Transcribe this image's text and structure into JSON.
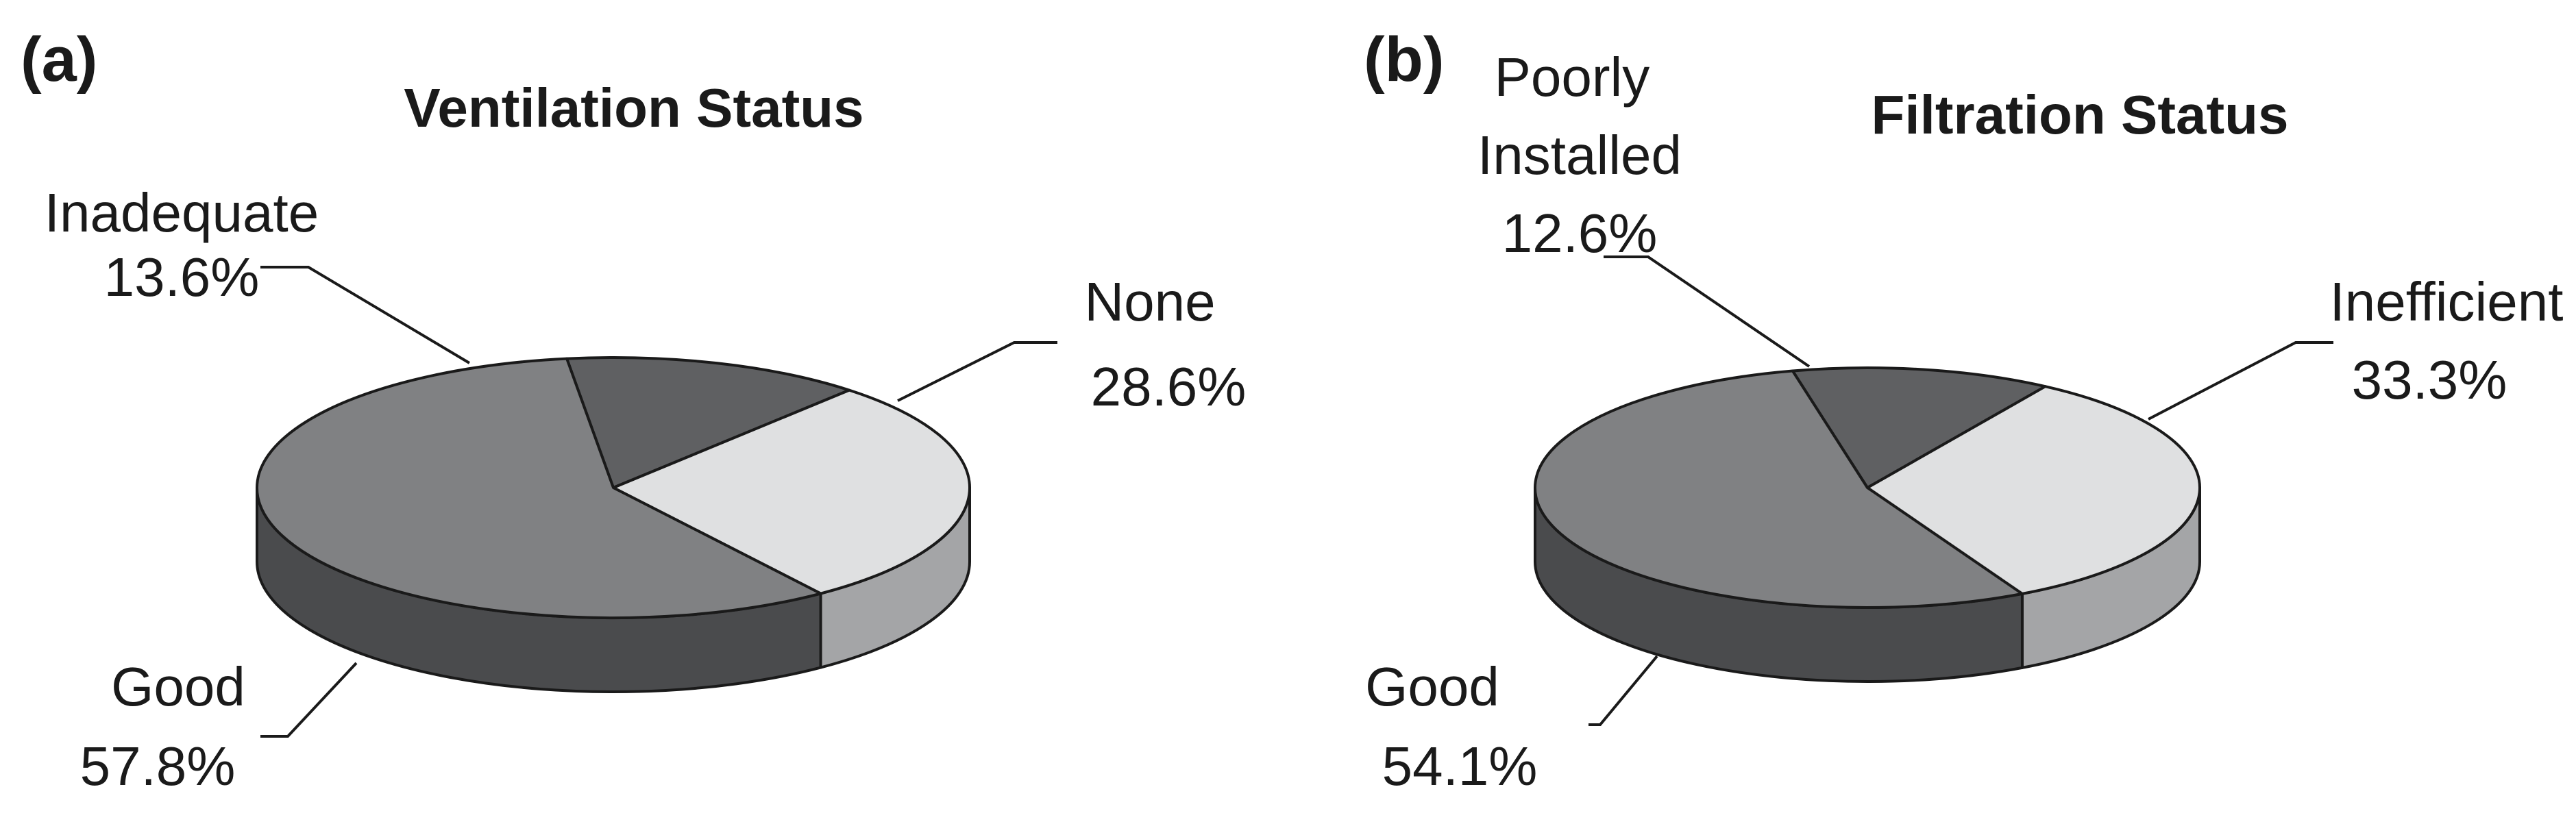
{
  "chart_data": [
    {
      "type": "pie",
      "panel_label": "(a)",
      "title": "Ventilation Status",
      "slices": [
        {
          "label": "Inadequate",
          "value": 13.6,
          "value_text": "13.6%",
          "color": "#5f6062",
          "side_color": "#444547"
        },
        {
          "label": "None",
          "value": 28.6,
          "value_text": "28.6%",
          "color": "#dfe0e1",
          "side_color": "#a4a5a7"
        },
        {
          "label": "Good",
          "value": 57.8,
          "value_text": "57.8%",
          "color": "#808183",
          "side_color": "#4a4b4d"
        }
      ]
    },
    {
      "type": "pie",
      "panel_label": "(b)",
      "title": "Filtration Status",
      "slices": [
        {
          "label": "Poorly\nInstalled",
          "value": 12.6,
          "value_text": "12.6%",
          "color": "#5f6062",
          "side_color": "#444547"
        },
        {
          "label": "Inefficient",
          "value": 33.3,
          "value_text": "33.3%",
          "color": "#dfe0e1",
          "side_color": "#a4a5a7"
        },
        {
          "label": "Good",
          "value": 54.1,
          "value_text": "54.1%",
          "color": "#808183",
          "side_color": "#4a4b4d"
        }
      ]
    }
  ]
}
